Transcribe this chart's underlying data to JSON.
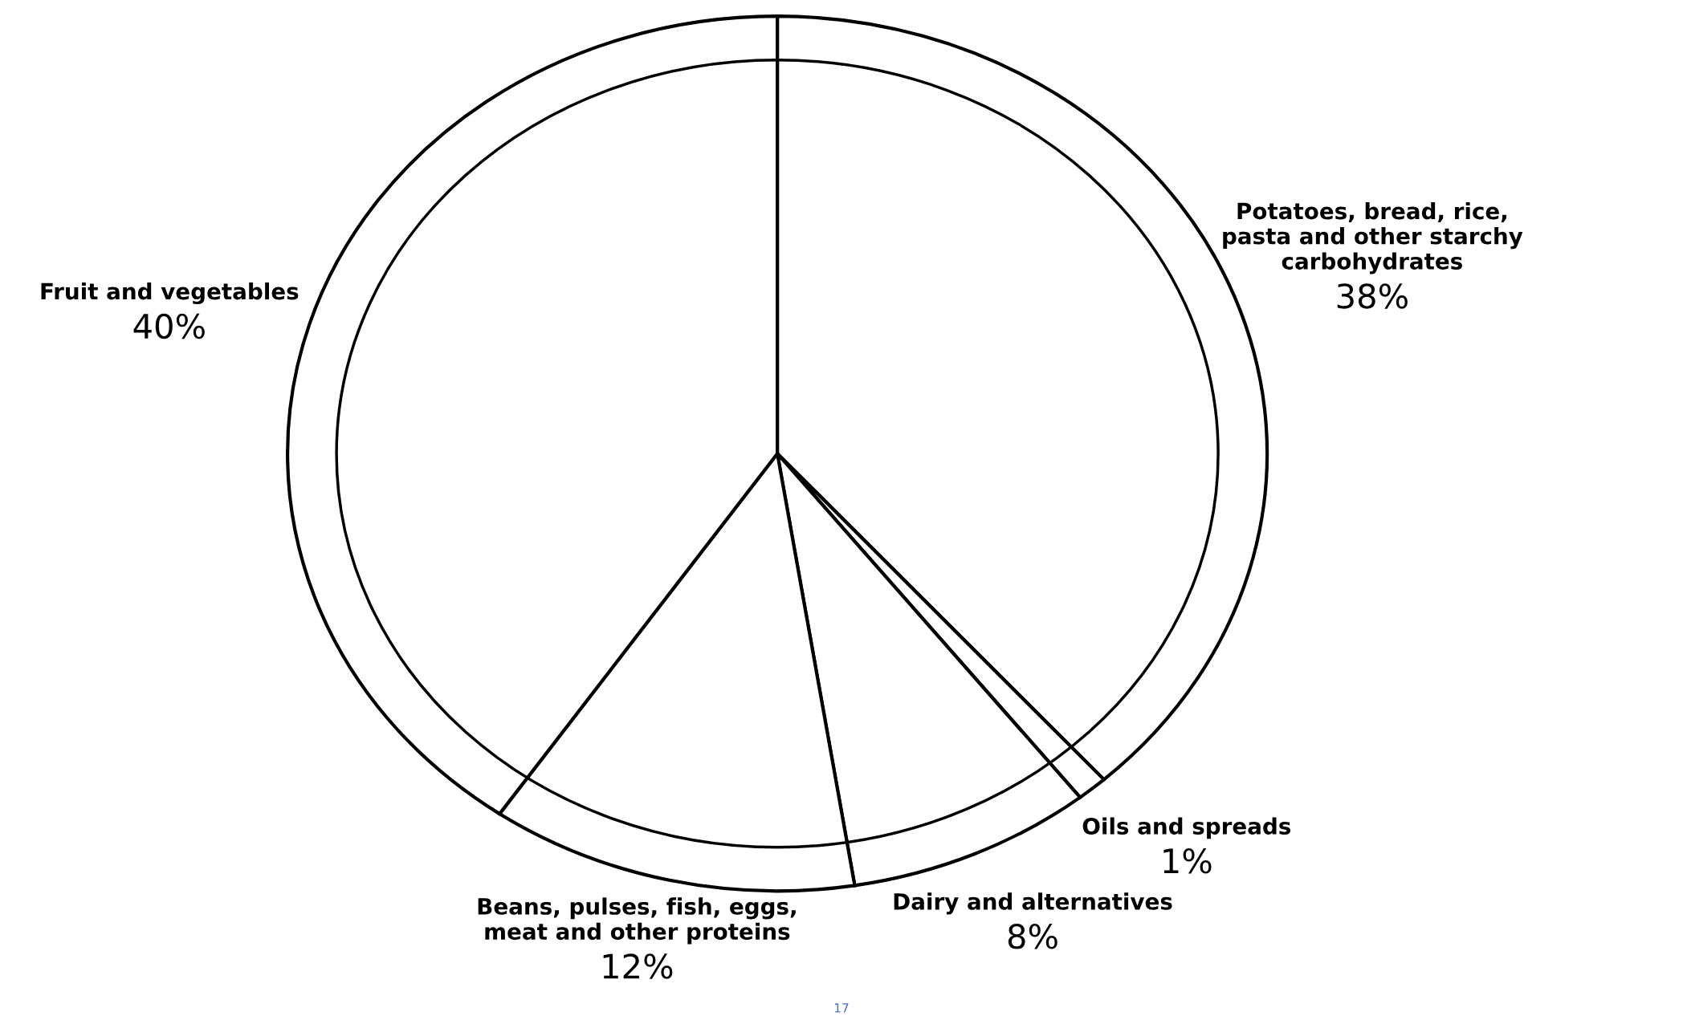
{
  "chart_data": {
    "type": "pie",
    "categories": [
      "Potatoes, bread, rice,\npasta and other starchy\ncarbohydrates",
      "Oils and spreads",
      "Dairy and alternatives",
      "Beans, pulses, fish, eggs,\nmeat and other proteins",
      "Fruit and vegetables"
    ],
    "values": [
      38,
      1,
      8,
      12,
      40
    ],
    "value_labels": [
      "38%",
      "1%",
      "8%",
      "12%",
      "40%"
    ],
    "colors": [
      "#ffffff",
      "#ffffff",
      "#ffffff",
      "#ffffff",
      "#ffffff"
    ],
    "annotations": [
      "17"
    ]
  }
}
